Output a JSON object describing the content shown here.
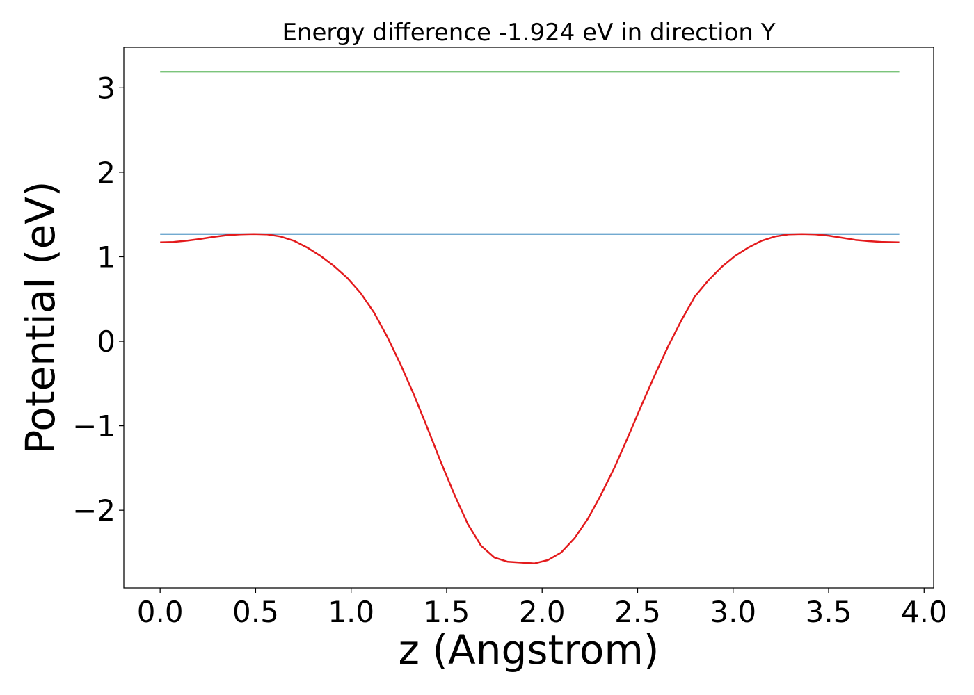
{
  "chart_data": {
    "type": "line",
    "title": "Energy difference -1.924 eV in direction Y",
    "xlabel": "z (Angstrom)",
    "ylabel": "Potential (eV)",
    "xlim": [
      -0.19,
      4.05
    ],
    "ylim": [
      -2.92,
      3.48
    ],
    "x_ticks": [
      0.0,
      0.5,
      1.0,
      1.5,
      2.0,
      2.5,
      3.0,
      3.5,
      4.0
    ],
    "x_tick_labels": [
      "0.0",
      "0.5",
      "1.0",
      "1.5",
      "2.0",
      "2.5",
      "3.0",
      "3.5",
      "4.0"
    ],
    "y_ticks": [
      -2,
      -1,
      0,
      1,
      2,
      3
    ],
    "y_tick_labels": [
      "−2",
      "−1",
      "0",
      "1",
      "2",
      "3"
    ],
    "grid": false,
    "series": [
      {
        "color": "#2ca02c",
        "x": [
          0.0,
          3.87
        ],
        "y": [
          3.19,
          3.19
        ]
      },
      {
        "color": "#1f77b4",
        "x": [
          0.0,
          3.87
        ],
        "y": [
          1.27,
          1.27
        ]
      },
      {
        "color": "#e31a1c",
        "x": [
          0.0,
          0.07,
          0.14,
          0.21,
          0.28,
          0.35,
          0.42,
          0.49,
          0.56,
          0.63,
          0.7,
          0.77,
          0.84,
          0.91,
          0.98,
          1.05,
          1.12,
          1.19,
          1.26,
          1.33,
          1.4,
          1.47,
          1.54,
          1.61,
          1.68,
          1.75,
          1.82,
          1.89,
          1.96,
          2.03,
          2.1,
          2.17,
          2.24,
          2.31,
          2.38,
          2.45,
          2.52,
          2.59,
          2.66,
          2.73,
          2.8,
          2.87,
          2.94,
          3.01,
          3.08,
          3.15,
          3.22,
          3.29,
          3.36,
          3.43,
          3.5,
          3.57,
          3.64,
          3.71,
          3.78,
          3.87
        ],
        "y": [
          1.17,
          1.175,
          1.19,
          1.21,
          1.235,
          1.255,
          1.265,
          1.27,
          1.265,
          1.24,
          1.19,
          1.11,
          1.01,
          0.89,
          0.75,
          0.57,
          0.34,
          0.05,
          -0.28,
          -0.64,
          -1.03,
          -1.43,
          -1.81,
          -2.16,
          -2.42,
          -2.56,
          -2.61,
          -2.62,
          -2.63,
          -2.59,
          -2.5,
          -2.33,
          -2.1,
          -1.81,
          -1.49,
          -1.13,
          -0.76,
          -0.4,
          -0.06,
          0.25,
          0.53,
          0.72,
          0.88,
          1.01,
          1.11,
          1.19,
          1.24,
          1.265,
          1.27,
          1.265,
          1.25,
          1.225,
          1.2,
          1.185,
          1.175,
          1.17
        ]
      }
    ]
  }
}
